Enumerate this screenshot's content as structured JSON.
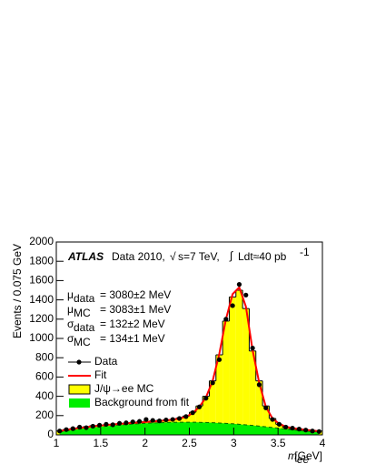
{
  "chart_data": {
    "type": "histogram",
    "title": {
      "experiment": "ATLAS",
      "text": "Data 2010,",
      "energy": "s=7 TeV,",
      "lumi": "Ldt≈40 pb",
      "lumi_exp": "-1"
    },
    "y_label": "Events / 0.075 GeV",
    "x_label": {
      "symbol": "m",
      "sub": "ee",
      "unit": "[GeV]"
    },
    "annotations": [
      {
        "symbol": "μ",
        "sub": "data",
        "text": "= 3080±2 MeV"
      },
      {
        "symbol": "μ",
        "sub": "MC",
        "text": "= 3083±1 MeV"
      },
      {
        "symbol": "σ",
        "sub": "data",
        "text": "=   132±2 MeV"
      },
      {
        "symbol": "σ",
        "sub": "MC",
        "text": "=   134±1 MeV"
      }
    ],
    "xlim": [
      1,
      4
    ],
    "xticks": [
      1,
      1.5,
      2,
      2.5,
      3,
      3.5,
      4
    ],
    "ylim": [
      0,
      2000
    ],
    "yticks": [
      0,
      200,
      400,
      600,
      800,
      1000,
      1200,
      1400,
      1600,
      1800,
      2000
    ],
    "bins": [
      1,
      1.075,
      1.15,
      1.225,
      1.3,
      1.375,
      1.45,
      1.525,
      1.6,
      1.675,
      1.75,
      1.825,
      1.9,
      1.975,
      2.05,
      2.125,
      2.2,
      2.275,
      2.35,
      2.425,
      2.5,
      2.575,
      2.65,
      2.725,
      2.8,
      2.875,
      2.95,
      3.025,
      3.1,
      3.175,
      3.25,
      3.325,
      3.4,
      3.475,
      3.55,
      3.625,
      3.7,
      3.775,
      3.85,
      3.925,
      4
    ],
    "x": [
      1.0375,
      1.1125,
      1.1875,
      1.2625,
      1.3375,
      1.4125,
      1.4875,
      1.5625,
      1.6375,
      1.7125,
      1.7875,
      1.8625,
      1.9375,
      2.0125,
      2.0875,
      2.1625,
      2.2375,
      2.3125,
      2.3875,
      2.4625,
      2.5375,
      2.6125,
      2.6875,
      2.7625,
      2.8375,
      2.9125,
      2.9875,
      3.0625,
      3.1375,
      3.2125,
      3.2875,
      3.3625,
      3.4375,
      3.5125,
      3.5875,
      3.6625,
      3.7375,
      3.8125,
      3.8875,
      3.9625
    ],
    "series": [
      {
        "name": "J/ψ→ee MC",
        "color": "#ffff00",
        "values": [
          40,
          55,
          65,
          75,
          85,
          95,
          100,
          105,
          110,
          115,
          120,
          130,
          135,
          140,
          145,
          150,
          155,
          160,
          175,
          195,
          235,
          300,
          400,
          560,
          830,
          1180,
          1430,
          1500,
          1310,
          870,
          560,
          300,
          170,
          110,
          80,
          65,
          55,
          50,
          45,
          40
        ]
      },
      {
        "name": "Background from fit",
        "color": "#00ee00",
        "values": [
          30,
          40,
          50,
          60,
          68,
          76,
          84,
          90,
          96,
          102,
          107,
          112,
          116,
          120,
          123,
          126,
          128,
          130,
          131,
          131,
          131,
          130,
          128,
          126,
          123,
          119,
          115,
          110,
          104,
          98,
          91,
          84,
          76,
          68,
          60,
          52,
          45,
          39,
          34,
          30
        ]
      },
      {
        "name": "Fit",
        "color": "#ff0000",
        "values": [
          40,
          52,
          62,
          72,
          80,
          88,
          95,
          102,
          108,
          114,
          119,
          124,
          129,
          134,
          139,
          144,
          150,
          158,
          170,
          188,
          225,
          290,
          390,
          560,
          840,
          1200,
          1460,
          1530,
          1330,
          880,
          540,
          290,
          170,
          115,
          85,
          70,
          60,
          52,
          45,
          38
        ]
      },
      {
        "name": "Data",
        "color": "#000000",
        "values": [
          40,
          55,
          65,
          80,
          75,
          90,
          100,
          110,
          105,
          120,
          125,
          135,
          140,
          160,
          150,
          145,
          155,
          160,
          170,
          190,
          230,
          290,
          380,
          540,
          780,
          1200,
          1340,
          1560,
          1450,
          900,
          520,
          280,
          160,
          110,
          80,
          70,
          60,
          50,
          40,
          35
        ]
      }
    ]
  }
}
